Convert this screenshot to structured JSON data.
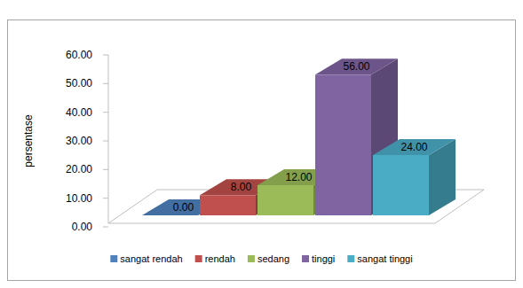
{
  "chart_data": {
    "type": "bar",
    "y_label": "persentase",
    "categories": [
      "sangat rendah",
      "rendah",
      "sedang",
      "tinggi",
      "sangat tinggi"
    ],
    "values": [
      0,
      8,
      12,
      56,
      24
    ],
    "value_labels": [
      "0.00",
      "8.00",
      "12.00",
      "56.00",
      "24.00"
    ],
    "colors": [
      "#4f81bd",
      "#c0504d",
      "#9bbb59",
      "#8064a2",
      "#4bacc6"
    ],
    "ylim": [
      0,
      60
    ],
    "yticks": [
      {
        "value": 0,
        "label": "0.00"
      },
      {
        "value": 10,
        "label": "10.00"
      },
      {
        "value": 20,
        "label": "20.00"
      },
      {
        "value": 30,
        "label": "30.00"
      },
      {
        "value": 40,
        "label": "40.00"
      },
      {
        "value": 50,
        "label": "50.00"
      },
      {
        "value": 60,
        "label": "60.00"
      }
    ],
    "data_labels": true,
    "legend": "bottom",
    "grid": false
  }
}
